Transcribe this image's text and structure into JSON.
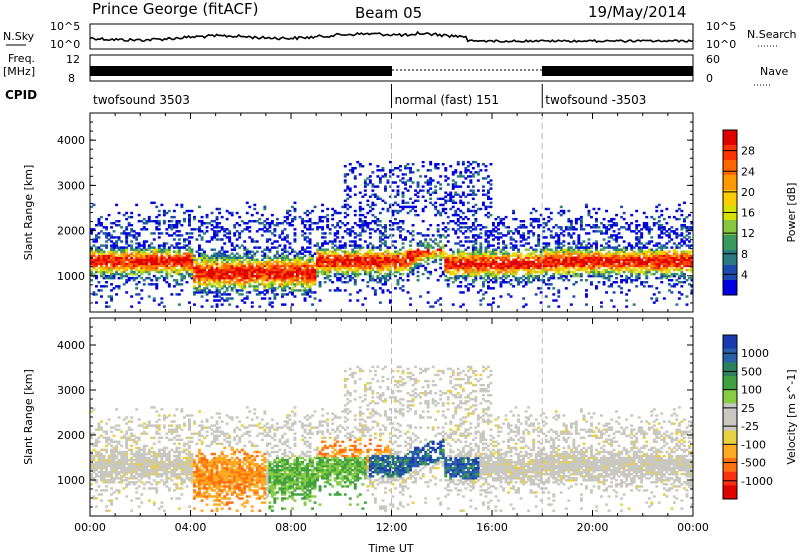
{
  "header": {
    "station": "Prince George (fitACF)",
    "beam": "Beam 05",
    "date": "19/May/2014"
  },
  "left_labels": {
    "nsky": "N.Sky",
    "freq_1": "Freq.",
    "freq_2": "[MHz]",
    "cpid": "CPID"
  },
  "right_labels": {
    "nsearch": "N.Search",
    "nave": "Nave"
  },
  "nsky_ticks": {
    "top": "10^5",
    "bottom": "10^0"
  },
  "freq_ticks": {
    "top": "12",
    "bottom": "8"
  },
  "nave_ticks": {
    "top": "60",
    "bottom": "0"
  },
  "cpid_segments": [
    {
      "label": "twofsound 3503",
      "start_h": 0,
      "end_h": 12
    },
    {
      "label": "normal (fast) 151",
      "start_h": 12,
      "end_h": 18
    },
    {
      "label": "twofsound -3503",
      "start_h": 18,
      "end_h": 24
    }
  ],
  "colorbar_power": {
    "label": "Power [dB]",
    "ticks": [
      "28",
      "24",
      "20",
      "16",
      "12",
      "8",
      "4"
    ],
    "colors": [
      "#e00000",
      "#ff3300",
      "#ff6600",
      "#ff9900",
      "#ffcc00",
      "#d8e000",
      "#88c840",
      "#3a9a60",
      "#2a7a80",
      "#1a4ab0",
      "#0000e0"
    ]
  },
  "colorbar_velocity": {
    "label": "Velocity [m s^-1]",
    "ticks": [
      "1000",
      "500",
      "100",
      "25",
      "-25",
      "-100",
      "-500",
      "-1000"
    ],
    "colors": [
      "#1a3ab0",
      "#2a60a8",
      "#2a8060",
      "#40a040",
      "#88cc44",
      "#c8c8c0",
      "#c8c8c0",
      "#e8d040",
      "#ffaa20",
      "#ff7010",
      "#ff3010",
      "#e00000"
    ]
  },
  "chart_data": [
    {
      "type": "heatmap",
      "title": "Power",
      "xlabel": "",
      "ylabel": "Slant Range [km]",
      "xlim_hours": [
        0,
        24
      ],
      "ylim_km": [
        200,
        4600
      ],
      "x_ticks": [
        "00:00",
        "04:00",
        "08:00",
        "12:00",
        "16:00",
        "20:00",
        "00:00"
      ],
      "y_ticks": [
        "1000",
        "2000",
        "3000",
        "4000"
      ],
      "colorbar": "Power [dB]",
      "scale_db": [
        0,
        32
      ]
    },
    {
      "type": "heatmap",
      "title": "Velocity",
      "xlabel": "Time UT",
      "ylabel": "Slant Range [km]",
      "xlim_hours": [
        0,
        24
      ],
      "ylim_km": [
        200,
        4600
      ],
      "x_ticks": [
        "00:00",
        "04:00",
        "08:00",
        "12:00",
        "16:00",
        "20:00",
        "00:00"
      ],
      "y_ticks": [
        "1000",
        "2000",
        "3000",
        "4000"
      ],
      "colorbar": "Velocity [m s^-1]",
      "scale_ms": [
        -1000,
        1000
      ]
    }
  ],
  "xaxis_label": "Time UT"
}
